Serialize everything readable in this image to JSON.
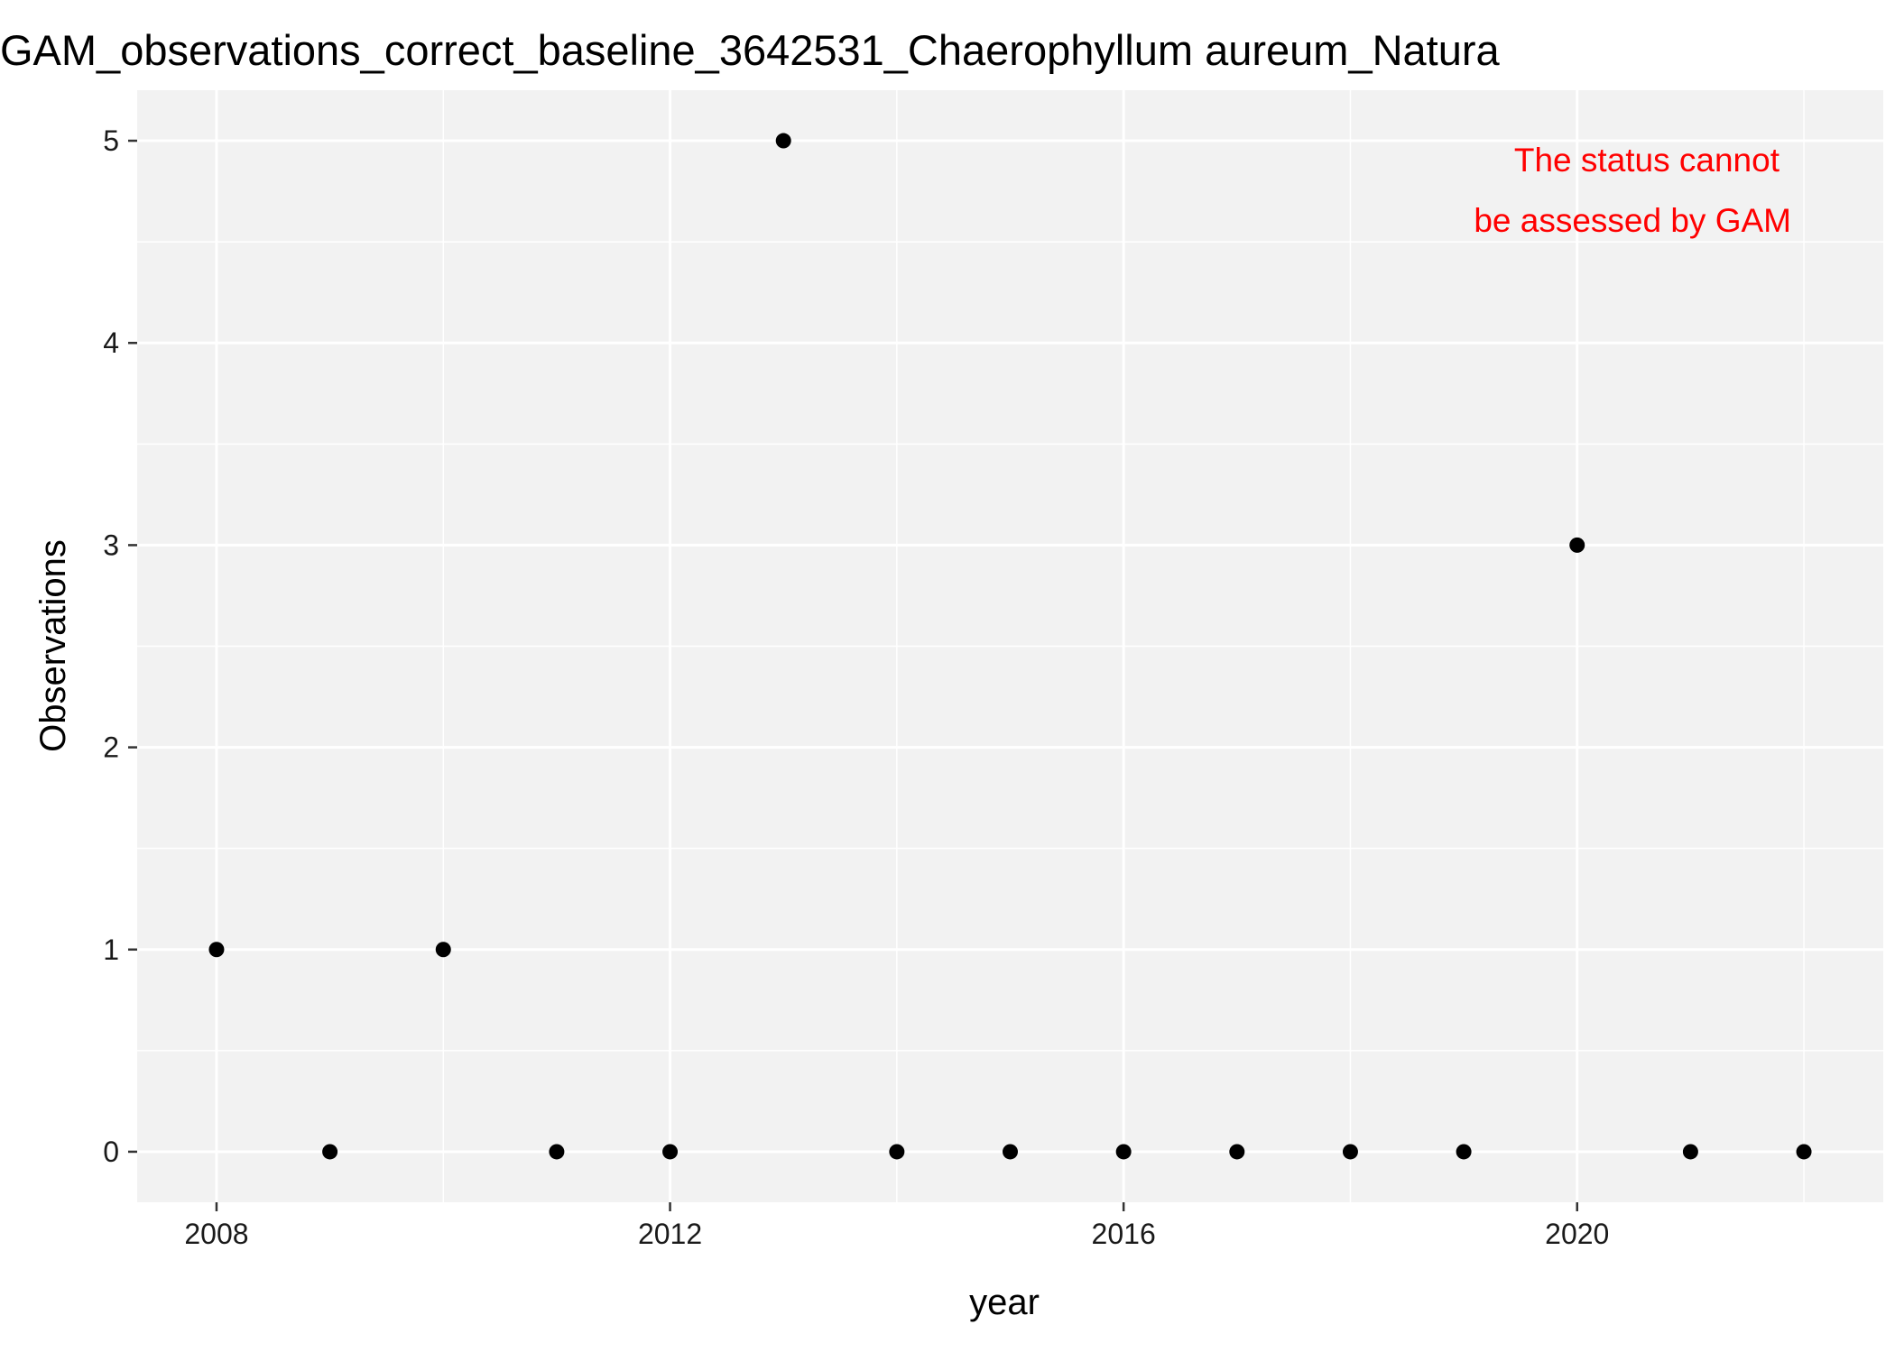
{
  "chart_data": {
    "type": "scatter",
    "title": "GAM_observations_correct_baseline_3642531_Chaerophyllum aureum_Natura",
    "xlabel": "year",
    "ylabel": "Observations",
    "xlim": [
      2007.3,
      2022.7
    ],
    "ylim": [
      -0.25,
      5.25
    ],
    "x_ticks": [
      2008,
      2012,
      2016,
      2020
    ],
    "x_tick_labels": [
      "2008",
      "2012",
      "2016",
      "2020"
    ],
    "y_ticks": [
      0,
      1,
      2,
      3,
      4,
      5
    ],
    "y_tick_labels": [
      "0",
      "1",
      "2",
      "3",
      "4",
      "5"
    ],
    "grid": true,
    "x": [
      2008,
      2009,
      2010,
      2011,
      2012,
      2013,
      2014,
      2015,
      2016,
      2017,
      2018,
      2019,
      2020,
      2021,
      2022
    ],
    "y": [
      1,
      0,
      1,
      0,
      0,
      5,
      0,
      0,
      0,
      0,
      0,
      0,
      3,
      0,
      0
    ],
    "annotation": {
      "lines": [
        "The status cannot",
        "be assessed by GAM"
      ],
      "color": "#ff0000"
    },
    "colors": {
      "panel_background": "#f2f2f2",
      "grid": "#ffffff",
      "points": "#000000"
    }
  }
}
